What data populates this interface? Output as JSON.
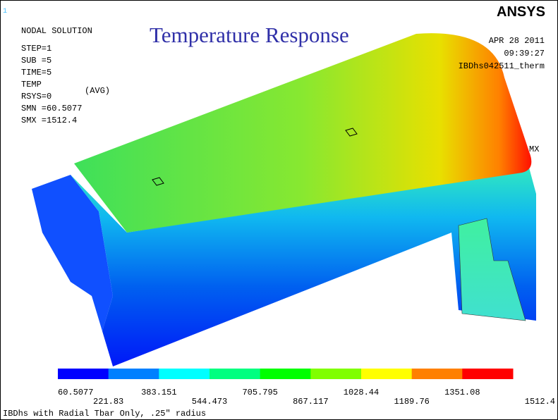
{
  "window_number": "1",
  "info": {
    "lines": [
      "NODAL SOLUTION",
      "STEP=1",
      "SUB =5",
      "TIME=5",
      "TEMP",
      "RSYS=0",
      "SMN =60.5077",
      "SMX =1512.4"
    ],
    "avg": "(AVG)"
  },
  "title": "Temperature Response",
  "logo": "ANSYS",
  "date": "APR 28 2011",
  "time": "09:39:27",
  "jobname": "IBDhs042511_therm",
  "max_marker": "MX",
  "legend": {
    "colors": [
      "#0000ff",
      "#0080ff",
      "#00ffff",
      "#00ff80",
      "#00ff00",
      "#80ff00",
      "#ffff00",
      "#ff8000",
      "#ff0000"
    ],
    "values": [
      60.5077,
      221.83,
      383.151,
      544.473,
      705.795,
      867.117,
      1028.44,
      1189.76,
      1351.08,
      1512.4
    ]
  },
  "footer": "IBDhs with Radial Tbar Only, .25\" radius"
}
